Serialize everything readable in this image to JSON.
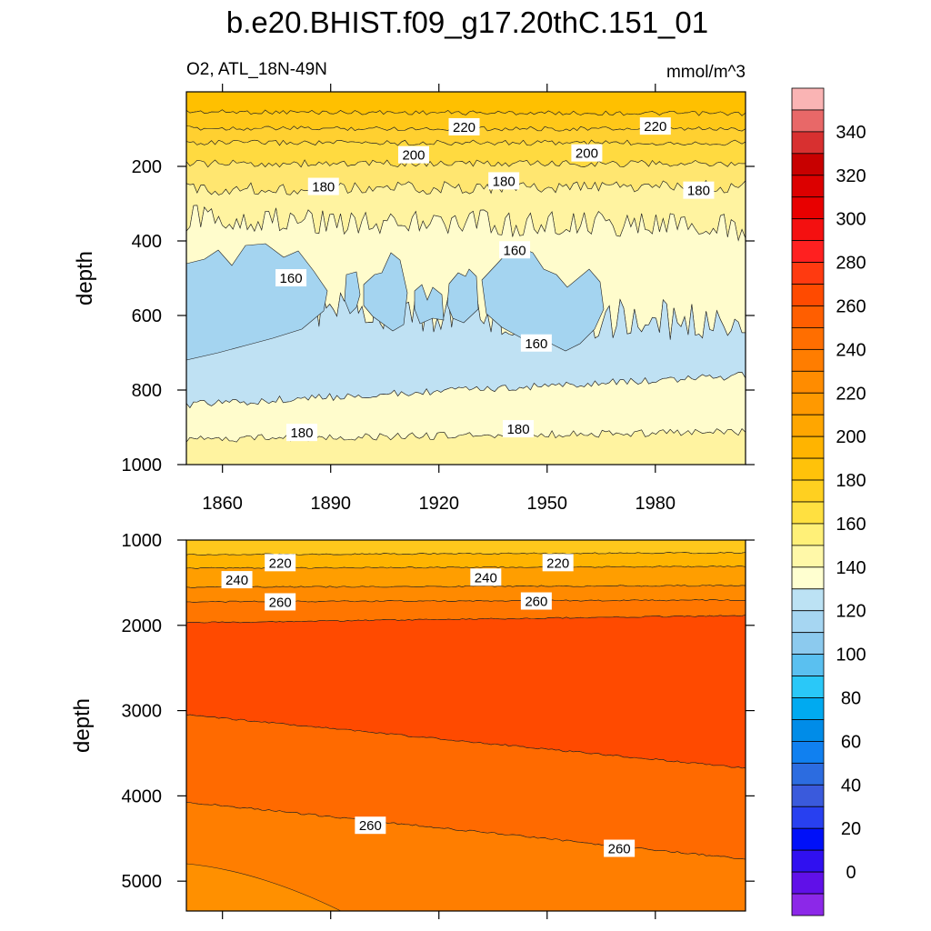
{
  "title": "b.e20.BHIST.f09_g17.20thC.151_01",
  "chart_data": [
    {
      "type": "heatmap",
      "subtitle_left": "O2, ATL_18N-49N",
      "subtitle_right": "mmol/m^3",
      "ylabel": "depth",
      "xlabel": "",
      "xlim": [
        1850,
        2005
      ],
      "ylim": [
        1000,
        0
      ],
      "x_ticks": [
        "1860",
        "1890",
        "1920",
        "1950",
        "1980"
      ],
      "y_ticks": [
        "200",
        "400",
        "600",
        "800",
        "1000"
      ],
      "contour_labels": [
        {
          "text": "220",
          "x": 1927,
          "y": 95
        },
        {
          "text": "220",
          "x": 1980,
          "y": 93
        },
        {
          "text": "200",
          "x": 1913,
          "y": 170
        },
        {
          "text": "200",
          "x": 1961,
          "y": 165
        },
        {
          "text": "180",
          "x": 1888,
          "y": 255
        },
        {
          "text": "180",
          "x": 1938,
          "y": 240
        },
        {
          "text": "180",
          "x": 1992,
          "y": 265
        },
        {
          "text": "160",
          "x": 1879,
          "y": 500
        },
        {
          "text": "160",
          "x": 1941,
          "y": 425
        },
        {
          "text": "160",
          "x": 1947,
          "y": 675
        },
        {
          "text": "180",
          "x": 1882,
          "y": 915
        },
        {
          "text": "180",
          "x": 1942,
          "y": 905
        }
      ]
    },
    {
      "type": "heatmap",
      "ylabel": "depth",
      "xlim": [
        1850,
        2005
      ],
      "ylim": [
        5350,
        1000
      ],
      "y_ticks": [
        "1000",
        "2000",
        "3000",
        "4000",
        "5000"
      ],
      "contour_labels": [
        {
          "text": "220",
          "x": 1876,
          "y": 1270
        },
        {
          "text": "220",
          "x": 1953,
          "y": 1270
        },
        {
          "text": "240",
          "x": 1864,
          "y": 1470
        },
        {
          "text": "240",
          "x": 1933,
          "y": 1440
        },
        {
          "text": "260",
          "x": 1876,
          "y": 1730
        },
        {
          "text": "260",
          "x": 1947,
          "y": 1720
        },
        {
          "text": "260",
          "x": 1901,
          "y": 4350
        },
        {
          "text": "260",
          "x": 1970,
          "y": 4620
        }
      ]
    }
  ],
  "colorbar": {
    "labels": [
      "340",
      "320",
      "300",
      "280",
      "260",
      "240",
      "220",
      "200",
      "180",
      "160",
      "140",
      "120",
      "100",
      "80",
      "60",
      "40",
      "20",
      "0"
    ],
    "colors": [
      "#FAB4B4",
      "#E86868",
      "#D83030",
      "#C80000",
      "#DC0000",
      "#E80000",
      "#F41010",
      "#FF2020",
      "#FF3A10",
      "#FF4A00",
      "#FF5E00",
      "#FF6E00",
      "#FF7D00",
      "#FF8C00",
      "#FF9900",
      "#FFA600",
      "#FFB400",
      "#FFC20A",
      "#FFD020",
      "#FFE040",
      "#FFF078",
      "#FFF8A8",
      "#FFFFD0",
      "#BCE2F4",
      "#A6D6F2",
      "#8CCAEE",
      "#5AC0F0",
      "#2AC8F8",
      "#00AAF0",
      "#008CE8",
      "#1080F0",
      "#2C6CE0",
      "#3A5ADC",
      "#2840F0",
      "#0010F8",
      "#3010F0",
      "#6010E8",
      "#8C28E8"
    ]
  },
  "fills": {
    "top_bands": [
      "#FFC000",
      "#FFC818",
      "#FFD030",
      "#FFDA40",
      "#FFE670",
      "#FFF3A0",
      "#FFFCCC",
      "#BFE1F3",
      "#A4D4F0",
      "#BFE1F3",
      "#FFFCCC",
      "#FFF3A0"
    ],
    "bottom_bands": [
      "#FFC81C",
      "#FFB400",
      "#FF9E00",
      "#FF8A00",
      "#FF7600",
      "#FF4A00",
      "#FF6A00",
      "#FF7E00",
      "#FF9000"
    ]
  }
}
